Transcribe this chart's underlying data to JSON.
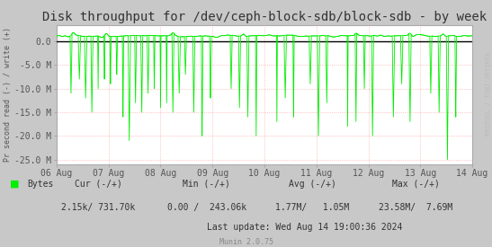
{
  "title": "Disk throughput for /dev/ceph-block-sdb/block-sdb - by week",
  "ylabel": "Pr second read (-) / write (+)",
  "background_color": "#C8C8C8",
  "plot_bg_color": "#FFFFFF",
  "line_color": "#00EE00",
  "zero_line_color": "#000000",
  "ylim": [
    -26000000,
    3500000
  ],
  "ytick_positions": [
    0,
    -5000000,
    -10000000,
    -15000000,
    -20000000,
    -25000000
  ],
  "ytick_labels": [
    "0.0",
    "-5.0 M",
    "-10.0 M",
    "-15.0 M",
    "-20.0 M",
    "-25.0 M"
  ],
  "xtick_labels": [
    "06 Aug",
    "07 Aug",
    "08 Aug",
    "09 Aug",
    "10 Aug",
    "11 Aug",
    "12 Aug",
    "13 Aug",
    "14 Aug"
  ],
  "footer_text": "Munin 2.0.75",
  "legend_label": "Bytes",
  "cur_label": "Cur (-/+)",
  "cur_val": "2.15k/ 731.70k",
  "min_label": "Min (-/+)",
  "min_val": "0.00 /  243.06k",
  "avg_label": "Avg (-/+)",
  "avg_val": "1.77M/   1.05M",
  "max_label": "Max (-/+)",
  "max_val": "23.58M/  7.69M",
  "last_update": "Last update: Wed Aug 14 19:00:36 2024",
  "watermark": "RRDTOOL / TOBI OETIKER",
  "title_fontsize": 10,
  "tick_fontsize": 7,
  "ylabel_fontsize": 6,
  "footer_fontsize": 6
}
